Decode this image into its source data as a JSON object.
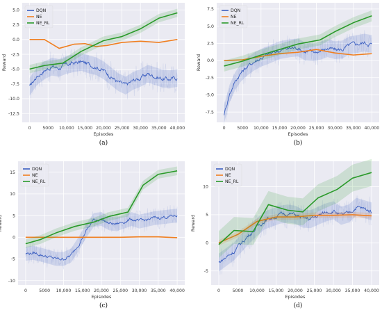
{
  "figure": {
    "panel_labels": [
      "(a)",
      "(b)",
      "(c)",
      "(d)"
    ]
  },
  "colors": {
    "DQN": "#3a5ec0",
    "NE": "#f07f20",
    "NE_RL": "#2a9a2a",
    "plot_bg": "#eaeaf2",
    "grid": "#ffffff"
  },
  "chart_data": [
    {
      "type": "line",
      "panel": "(a)",
      "xlabel": "Episodes",
      "ylabel": "Reward",
      "xlim": [
        -2000,
        42000
      ],
      "ylim": [
        -14,
        6.2
      ],
      "x_ticks": [
        0,
        5000,
        10000,
        15000,
        20000,
        25000,
        30000,
        35000,
        40000
      ],
      "x_tick_labels": [
        "0",
        "5000",
        "10,000",
        "15,000",
        "20,000",
        "25,000",
        "30,000",
        "35,000",
        "40,000"
      ],
      "y_ticks": [
        -12.5,
        -10,
        -7.5,
        -5,
        -2.5,
        0,
        2.5,
        5
      ],
      "y_tick_labels": [
        "-12.5",
        "-10.0",
        "-7.5",
        "-5.0",
        "-2.5",
        "0.0",
        "2.5",
        "5.0"
      ],
      "legend": "top-left",
      "grid": true,
      "series": [
        {
          "name": "DQN",
          "noisy": true,
          "noise_amp": 1.2,
          "band": 1.5,
          "x": [
            0,
            2000,
            4000,
            6000,
            8000,
            10000,
            12000,
            14000,
            16000,
            18000,
            20000,
            22000,
            24000,
            26000,
            28000,
            30000,
            32000,
            34000,
            36000,
            38000,
            40000
          ],
          "y": [
            -8,
            -6.2,
            -5.2,
            -4.6,
            -4.8,
            -4.3,
            -4.0,
            -3.8,
            -4.2,
            -4.5,
            -5.2,
            -6.2,
            -7.2,
            -7.8,
            -7.0,
            -6.5,
            -5.8,
            -6.2,
            -6.6,
            -6.7,
            -6.5
          ]
        },
        {
          "name": "NE",
          "x": [
            0,
            4000,
            8000,
            12000,
            15000,
            18000,
            21000,
            25000,
            30000,
            35000,
            40000
          ],
          "y": [
            0,
            0,
            -1.5,
            -0.8,
            -0.7,
            -1.2,
            -1.0,
            -0.5,
            -0.3,
            -0.5,
            0
          ]
        },
        {
          "name": "NE_RL",
          "band": 0.7,
          "x": [
            0,
            4000,
            9000,
            14000,
            20000,
            25000,
            30000,
            35000,
            40000
          ],
          "y": [
            -5,
            -4.4,
            -4.0,
            -2.0,
            -0.2,
            0.5,
            1.8,
            3.6,
            4.5
          ]
        }
      ]
    },
    {
      "type": "line",
      "panel": "(b)",
      "xlabel": "Episodes",
      "ylabel": "Reward",
      "xlim": [
        -2000,
        42000
      ],
      "ylim": [
        -9,
        8.4
      ],
      "x_ticks": [
        0,
        5000,
        10000,
        15000,
        20000,
        25000,
        30000,
        35000,
        40000
      ],
      "x_tick_labels": [
        "0",
        "5000",
        "10,000",
        "15,000",
        "20,000",
        "25,000",
        "30,000",
        "35,000",
        "40,000"
      ],
      "y_ticks": [
        -7.5,
        -5,
        -2.5,
        0,
        2.5,
        5,
        7.5
      ],
      "y_tick_labels": [
        "-7.5",
        "-5.0",
        "-2.5",
        "0.0",
        "2.5",
        "5.0",
        "7.5"
      ],
      "legend": "top-left",
      "grid": true,
      "series": [
        {
          "name": "DQN",
          "noisy": true,
          "noise_amp": 1.0,
          "band": 1.3,
          "x": [
            0,
            1500,
            3000,
            4500,
            6000,
            8000,
            10000,
            12000,
            15000,
            18000,
            20000,
            22000,
            24000,
            26000,
            28000,
            30000,
            32000,
            34000,
            36000,
            38000,
            40000
          ],
          "y": [
            -7.8,
            -4.8,
            -3.0,
            -1.8,
            -1.0,
            -0.2,
            0.4,
            0.8,
            1.5,
            1.8,
            1.9,
            1.3,
            1.2,
            1.4,
            1.8,
            1.5,
            1.6,
            2.2,
            2.4,
            2.6,
            2.4
          ]
        },
        {
          "name": "NE",
          "x": [
            0,
            5000,
            10000,
            15000,
            20000,
            25000,
            30000,
            35000,
            40000
          ],
          "y": [
            0,
            0.1,
            0.6,
            1.0,
            1.2,
            1.6,
            1.1,
            0.8,
            1.0
          ]
        },
        {
          "name": "NE_RL",
          "band": 0.8,
          "x": [
            0,
            5000,
            10000,
            15000,
            20000,
            26000,
            30000,
            35000,
            40000
          ],
          "y": [
            -0.8,
            -0.1,
            0.8,
            1.6,
            2.4,
            3.0,
            4.2,
            5.5,
            6.5
          ]
        }
      ]
    },
    {
      "type": "line",
      "panel": "(c)",
      "xlabel": "Episodes",
      "ylabel": "Reward",
      "xlim": [
        -2000,
        42000
      ],
      "ylim": [
        -11,
        17.5
      ],
      "x_ticks": [
        0,
        5000,
        10000,
        15000,
        20000,
        25000,
        30000,
        35000,
        40000
      ],
      "x_tick_labels": [
        "0",
        "5000",
        "10,000",
        "15,000",
        "20,000",
        "25,000",
        "30,000",
        "35,000",
        "40,000"
      ],
      "y_ticks": [
        -10,
        -5,
        0,
        5,
        10,
        15
      ],
      "y_tick_labels": [
        "-10",
        "-5",
        "0",
        "5",
        "10",
        "15"
      ],
      "legend": "top-left",
      "grid": true,
      "series": [
        {
          "name": "DQN",
          "noisy": true,
          "noise_amp": 1.2,
          "band": 1.6,
          "x": [
            0,
            2000,
            4000,
            6000,
            8000,
            10000,
            12000,
            14000,
            16000,
            18000,
            20000,
            22000,
            24000,
            26000,
            28000,
            30000,
            32000,
            34000,
            36000,
            38000,
            40000
          ],
          "y": [
            -3.8,
            -3.6,
            -4.0,
            -4.5,
            -5.0,
            -5.0,
            -4.2,
            -1.5,
            1.5,
            4.0,
            4.2,
            3.2,
            3.0,
            3.6,
            4.2,
            3.6,
            4.0,
            4.4,
            4.6,
            4.8,
            5.0
          ]
        },
        {
          "name": "NE",
          "x": [
            0,
            5000,
            10000,
            15000,
            20000,
            25000,
            30000,
            35000,
            40000
          ],
          "y": [
            0,
            0,
            0,
            0,
            0,
            0,
            0.1,
            0.1,
            -0.1
          ]
        },
        {
          "name": "NE_RL",
          "band": 1.0,
          "x": [
            0,
            4000,
            8000,
            13000,
            18000,
            22000,
            27000,
            31000,
            35000,
            40000
          ],
          "y": [
            -1.5,
            -0.5,
            1.0,
            2.5,
            3.5,
            4.8,
            5.8,
            12.0,
            14.5,
            15.3
          ]
        }
      ]
    },
    {
      "type": "line",
      "panel": "(d)",
      "xlabel": "Episodes",
      "ylabel": "Reward",
      "xlim": [
        -2000,
        42000
      ],
      "ylim": [
        -7.5,
        14.5
      ],
      "x_ticks": [
        0,
        5000,
        10000,
        15000,
        20000,
        25000,
        30000,
        35000,
        40000
      ],
      "x_tick_labels": [
        "0",
        "5000",
        "10,000",
        "15,000",
        "20,000",
        "25,000",
        "30,000",
        "35,000",
        "40,000"
      ],
      "y_ticks": [
        -5,
        0,
        5,
        10
      ],
      "y_tick_labels": [
        "-5",
        "0",
        "5",
        "10"
      ],
      "legend": "top-left",
      "grid": true,
      "series": [
        {
          "name": "DQN",
          "noisy": true,
          "noise_amp": 1.2,
          "band": 1.6,
          "x": [
            0,
            2000,
            4000,
            6000,
            8000,
            10000,
            12000,
            14000,
            16000,
            18000,
            20000,
            22000,
            24000,
            26000,
            28000,
            30000,
            32000,
            34000,
            36000,
            38000,
            40000
          ],
          "y": [
            -3.5,
            -2.5,
            -1.5,
            0.0,
            1.5,
            2.8,
            4.0,
            4.5,
            5.0,
            5.2,
            5.0,
            4.3,
            4.2,
            4.8,
            5.4,
            5.8,
            4.8,
            5.2,
            6.4,
            6.0,
            5.6
          ]
        },
        {
          "name": "NE",
          "band": 0.5,
          "x": [
            0,
            5000,
            10000,
            15000,
            20000,
            25000,
            30000,
            35000,
            40000
          ],
          "y": [
            0,
            1.5,
            3.8,
            4.6,
            4.6,
            4.9,
            4.9,
            5.0,
            4.8
          ]
        },
        {
          "name": "NE_RL",
          "band": 2.4,
          "x": [
            0,
            4000,
            9000,
            13000,
            18000,
            22000,
            26000,
            31000,
            35000,
            40000
          ],
          "y": [
            -0.3,
            2.2,
            2.0,
            6.8,
            5.8,
            5.5,
            8.0,
            9.5,
            11.5,
            12.5
          ]
        }
      ]
    }
  ]
}
